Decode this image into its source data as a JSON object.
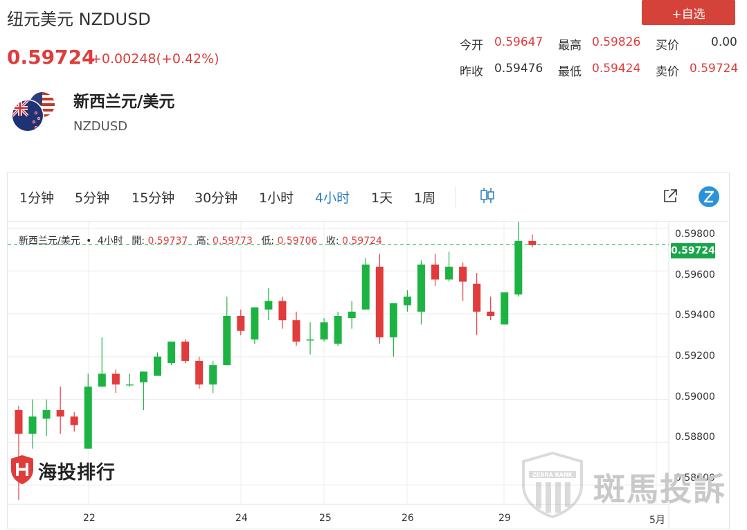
{
  "header": {
    "title": "纽元美元 NZDUSD",
    "add_watch_label": "+自选",
    "price": "0.59724",
    "change": "+0.00248(+0.42%)"
  },
  "quotes": {
    "open_label": "今开",
    "open": "0.59647",
    "high_label": "最高",
    "high": "0.59826",
    "bid_label": "买价",
    "bid": "0.00",
    "prev_close_label": "昨收",
    "prev_close": "0.59476",
    "low_label": "最低",
    "low": "0.59424",
    "ask_label": "卖价",
    "ask": "0.59724"
  },
  "instrument": {
    "name": "新西兰元/美元",
    "code": "NZDUSD",
    "flag_icon": "nz-us-flag-icon"
  },
  "timeframes": [
    "1分钟",
    "5分钟",
    "15分钟",
    "30分钟",
    "1小时",
    "4小时",
    "1天",
    "1周"
  ],
  "active_timeframe": "4小时",
  "toolbar": {
    "chart_type_icon": "candles-icon",
    "popout_icon": "external-link-icon",
    "brand_icon": "tradingview-icon"
  },
  "legend": {
    "symbol": "新西兰元/美元",
    "dot": "•",
    "interval": "4小时",
    "open_label": "開:",
    "open": "0.59737",
    "high_label": "高:",
    "high": "0.59773",
    "low_label": "低:",
    "low": "0.59706",
    "close_label": "收:",
    "close": "0.59724"
  },
  "colors": {
    "up": "#1db343",
    "down": "#e23b3b",
    "accent": "#2a7dbf",
    "button": "#d5423a",
    "last_price": "#19a54a"
  },
  "chart_data": {
    "type": "candlestick",
    "interval": "4小时",
    "last_price": 0.59724,
    "ylim": [
      0.5851,
      0.5983
    ],
    "y_ticks": [
      "0.59800",
      "0.59600",
      "0.59400",
      "0.59200",
      "0.59000",
      "0.58800",
      "0.58600"
    ],
    "x_ticks": [
      "22",
      "24",
      "25",
      "26",
      "29",
      "5月"
    ],
    "candles": [
      {
        "o": 0.5895,
        "h": 0.5897,
        "l": 0.5853,
        "c": 0.5884
      },
      {
        "o": 0.5884,
        "h": 0.59,
        "l": 0.5877,
        "c": 0.5892
      },
      {
        "o": 0.5891,
        "h": 0.59,
        "l": 0.5883,
        "c": 0.5895
      },
      {
        "o": 0.5895,
        "h": 0.5906,
        "l": 0.5884,
        "c": 0.5892
      },
      {
        "o": 0.5892,
        "h": 0.5894,
        "l": 0.5885,
        "c": 0.5888
      },
      {
        "o": 0.5877,
        "h": 0.5912,
        "l": 0.5877,
        "c": 0.5906
      },
      {
        "o": 0.5906,
        "h": 0.5929,
        "l": 0.5906,
        "c": 0.5912
      },
      {
        "o": 0.5912,
        "h": 0.5914,
        "l": 0.5903,
        "c": 0.5907
      },
      {
        "o": 0.5907,
        "h": 0.5912,
        "l": 0.5906,
        "c": 0.5907
      },
      {
        "o": 0.5908,
        "h": 0.5913,
        "l": 0.5895,
        "c": 0.5913
      },
      {
        "o": 0.5911,
        "h": 0.5922,
        "l": 0.5911,
        "c": 0.592
      },
      {
        "o": 0.5917,
        "h": 0.5927,
        "l": 0.5916,
        "c": 0.5927
      },
      {
        "o": 0.5927,
        "h": 0.5928,
        "l": 0.5917,
        "c": 0.5918
      },
      {
        "o": 0.5918,
        "h": 0.592,
        "l": 0.5905,
        "c": 0.5907
      },
      {
        "o": 0.5907,
        "h": 0.5918,
        "l": 0.5903,
        "c": 0.5916
      },
      {
        "o": 0.5916,
        "h": 0.5948,
        "l": 0.5916,
        "c": 0.5939
      },
      {
        "o": 0.5939,
        "h": 0.5942,
        "l": 0.593,
        "c": 0.5932
      },
      {
        "o": 0.5928,
        "h": 0.5943,
        "l": 0.5926,
        "c": 0.5943
      },
      {
        "o": 0.5942,
        "h": 0.5952,
        "l": 0.5937,
        "c": 0.5946
      },
      {
        "o": 0.5946,
        "h": 0.5948,
        "l": 0.5933,
        "c": 0.5937
      },
      {
        "o": 0.5937,
        "h": 0.5941,
        "l": 0.5925,
        "c": 0.5927
      },
      {
        "o": 0.5928,
        "h": 0.5936,
        "l": 0.5921,
        "c": 0.5928
      },
      {
        "o": 0.5928,
        "h": 0.5938,
        "l": 0.5927,
        "c": 0.5936
      },
      {
        "o": 0.5926,
        "h": 0.5941,
        "l": 0.5925,
        "c": 0.5939
      },
      {
        "o": 0.5938,
        "h": 0.5946,
        "l": 0.5933,
        "c": 0.5941
      },
      {
        "o": 0.5942,
        "h": 0.5966,
        "l": 0.5942,
        "c": 0.5963
      },
      {
        "o": 0.5962,
        "h": 0.5968,
        "l": 0.5926,
        "c": 0.5929
      },
      {
        "o": 0.5929,
        "h": 0.5945,
        "l": 0.592,
        "c": 0.5945
      },
      {
        "o": 0.5944,
        "h": 0.5951,
        "l": 0.5941,
        "c": 0.5948
      },
      {
        "o": 0.5941,
        "h": 0.5965,
        "l": 0.5935,
        "c": 0.5963
      },
      {
        "o": 0.5963,
        "h": 0.5968,
        "l": 0.5953,
        "c": 0.5956
      },
      {
        "o": 0.5956,
        "h": 0.5969,
        "l": 0.5955,
        "c": 0.5962
      },
      {
        "o": 0.5962,
        "h": 0.5964,
        "l": 0.5946,
        "c": 0.5955
      },
      {
        "o": 0.5954,
        "h": 0.5959,
        "l": 0.593,
        "c": 0.5941
      },
      {
        "o": 0.5941,
        "h": 0.5948,
        "l": 0.5937,
        "c": 0.5939
      },
      {
        "o": 0.5935,
        "h": 0.595,
        "l": 0.5935,
        "c": 0.595
      },
      {
        "o": 0.5949,
        "h": 0.5983,
        "l": 0.5948,
        "c": 0.5974
      },
      {
        "o": 0.5974,
        "h": 0.5977,
        "l": 0.5971,
        "c": 0.5972
      }
    ]
  },
  "watermarks": {
    "left_text": "海投排行",
    "right_text": "斑馬投訴",
    "right_badge_text": "ZEBRA RANK"
  }
}
